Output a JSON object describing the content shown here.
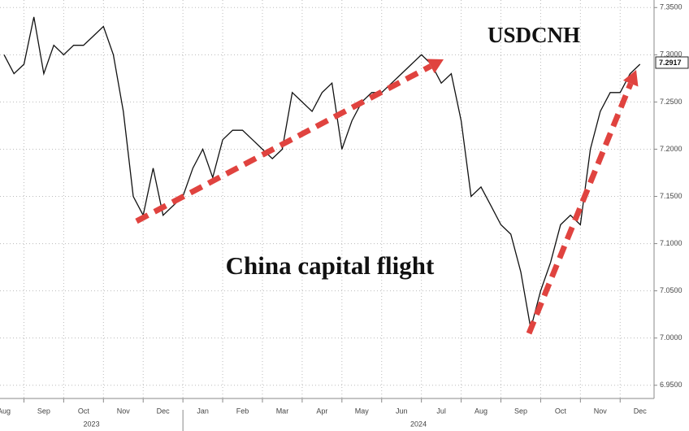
{
  "chart_data": {
    "type": "line",
    "title": "USDCNH",
    "annotation": "China capital flight",
    "categories": [
      "Aug",
      null,
      null,
      null,
      "Sep",
      null,
      null,
      null,
      "Oct",
      null,
      null,
      null,
      "Nov",
      null,
      null,
      null,
      "Dec",
      null,
      null,
      null,
      "Jan",
      null,
      null,
      null,
      "Feb",
      null,
      null,
      null,
      "Mar",
      null,
      null,
      null,
      "Apr",
      null,
      null,
      null,
      "May",
      null,
      null,
      null,
      "Jun",
      null,
      null,
      null,
      "Jul",
      null,
      null,
      null,
      "Aug",
      null,
      null,
      null,
      "Sep",
      null,
      null,
      null,
      "Oct",
      null,
      null,
      null,
      "Nov",
      null,
      null,
      null,
      "Dec"
    ],
    "years": [
      "2023",
      "2024"
    ],
    "values": [
      7.3,
      7.28,
      7.29,
      7.34,
      7.28,
      7.31,
      7.3,
      7.31,
      7.31,
      7.32,
      7.33,
      7.3,
      7.24,
      7.15,
      7.13,
      7.18,
      7.13,
      7.14,
      7.15,
      7.18,
      7.2,
      7.17,
      7.21,
      7.22,
      7.22,
      7.21,
      7.2,
      7.19,
      7.2,
      7.26,
      7.25,
      7.24,
      7.26,
      7.27,
      7.2,
      7.23,
      7.25,
      7.26,
      7.26,
      7.27,
      7.28,
      7.29,
      7.3,
      7.29,
      7.27,
      7.28,
      7.23,
      7.15,
      7.16,
      7.14,
      7.12,
      7.11,
      7.07,
      7.01,
      7.05,
      7.08,
      7.12,
      7.13,
      7.12,
      7.2,
      7.24,
      7.26,
      7.26,
      7.28,
      7.29
    ],
    "color": "#111111",
    "last_value": 7.2917,
    "arrow_color": "#e0433f",
    "ylim": [
      6.936,
      7.358
    ],
    "yticks": [
      {
        "value": 6.95,
        "label": "6.9500"
      },
      {
        "value": 7.0,
        "label": "7.0000"
      },
      {
        "value": 7.05,
        "label": "7.0500"
      },
      {
        "value": 7.1,
        "label": "7.1000"
      },
      {
        "value": 7.15,
        "label": "7.1500"
      },
      {
        "value": 7.2,
        "label": "7.2000"
      },
      {
        "value": 7.25,
        "label": "7.2500"
      },
      {
        "value": 7.3,
        "label": "7.3000"
      },
      {
        "value": 7.35,
        "label": "7.3500"
      }
    ],
    "grid": true
  }
}
